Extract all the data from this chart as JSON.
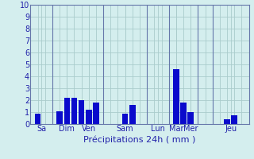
{
  "bar_values": [
    0.9,
    0.0,
    1.1,
    2.2,
    2.2,
    2.0,
    1.2,
    1.8,
    0.0,
    0.9,
    1.6,
    0.0,
    0.0,
    4.6,
    1.8,
    1.0,
    0.0,
    0.4,
    0.75
  ],
  "bar_positions": [
    1,
    2,
    4,
    5,
    6,
    7,
    8,
    9,
    11,
    13,
    14,
    17,
    18,
    20,
    21,
    22,
    24,
    27,
    28
  ],
  "n_cols": 30,
  "bar_color": "#0a0acc",
  "sep_positions": [
    3,
    10,
    16,
    19,
    23,
    25
  ],
  "day_labels": [
    "Sa",
    "Dim",
    "Ven",
    "Sam",
    "Lun",
    "Mar",
    "Mer",
    "Jeu"
  ],
  "day_tick_pos": [
    1.5,
    5.0,
    8.0,
    13.0,
    17.5,
    20.0,
    22.0,
    27.5
  ],
  "xlabel": "Précipitations 24h ( mm )",
  "ylim": [
    0,
    10
  ],
  "yticks": [
    0,
    1,
    2,
    3,
    4,
    5,
    6,
    7,
    8,
    9,
    10
  ],
  "background_color": "#d4eeee",
  "grid_color": "#aacccc",
  "bar_width": 0.82,
  "sep_color": "#6677aa",
  "label_color": "#2222aa",
  "tick_fontsize": 7,
  "xlabel_fontsize": 8
}
